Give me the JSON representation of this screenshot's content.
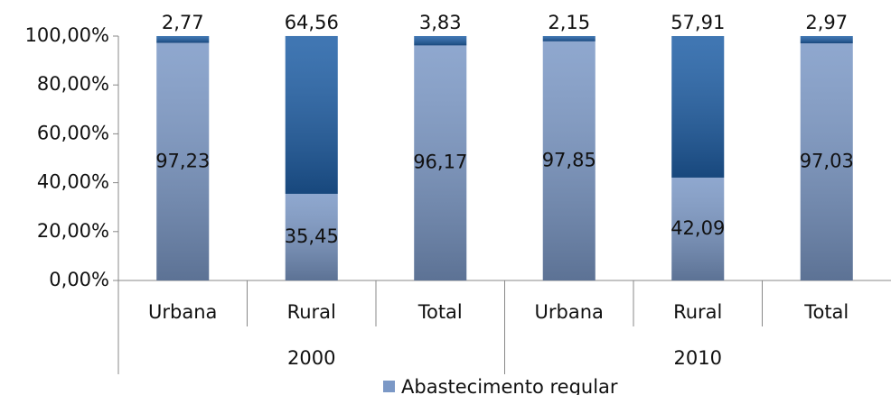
{
  "chart_data": {
    "type": "stacked_bar",
    "categories": [
      "Urbana",
      "Rural",
      "Total",
      "Urbana",
      "Rural",
      "Total"
    ],
    "groups": [
      "2000",
      "2010"
    ],
    "series": [
      {
        "name": "Abastecimento regular",
        "color": "#7b98c6",
        "values": [
          97.23,
          35.45,
          96.17,
          97.85,
          42.09,
          97.03
        ],
        "value_labels": [
          "97,23",
          "35,45",
          "96,17",
          "97,85",
          "42,09",
          "97,03"
        ]
      },
      {
        "color": "#1f5fa6",
        "values": [
          2.77,
          64.56,
          3.83,
          2.15,
          57.91,
          2.97
        ],
        "value_labels": [
          "2,77",
          "64,56",
          "3,83",
          "2,15",
          "57,91",
          "2,97"
        ]
      }
    ],
    "ylim": [
      0,
      100
    ],
    "yticks": [
      {
        "value": 0,
        "label": "0,00%"
      },
      {
        "value": 20,
        "label": "20,00%"
      },
      {
        "value": 40,
        "label": "40,00%"
      },
      {
        "value": 60,
        "label": "60,00%"
      },
      {
        "value": 80,
        "label": "80,00%"
      },
      {
        "value": 100,
        "label": "100,00%"
      }
    ],
    "legend": "bottom"
  }
}
